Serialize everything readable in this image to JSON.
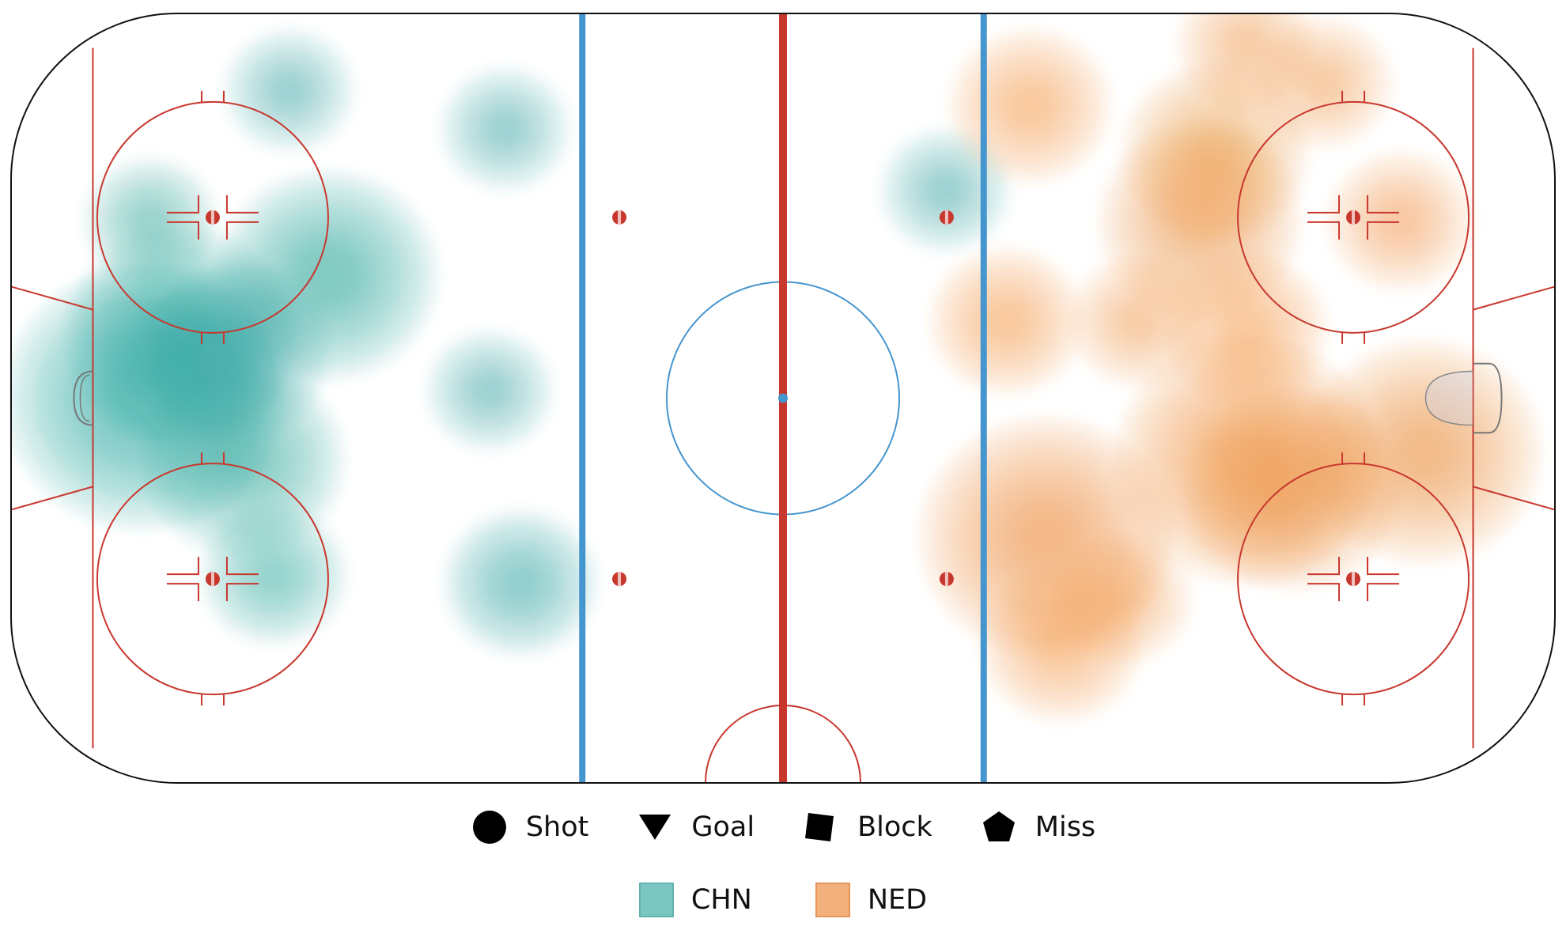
{
  "chart_data": {
    "type": "heatmap",
    "title": "",
    "description_in_picture": "",
    "legend": {
      "event_types": [
        {
          "label": "Shot",
          "shape": "circle"
        },
        {
          "label": "Goal",
          "shape": "triangle-down"
        },
        {
          "label": "Block",
          "shape": "square"
        },
        {
          "label": "Miss",
          "shape": "pentagon"
        }
      ],
      "teams": [
        {
          "label": "CHN",
          "color": "#7cc6c1",
          "border": "#5fb3ad"
        },
        {
          "label": "NED",
          "color": "#f2b07d",
          "border": "#e8955a"
        }
      ]
    },
    "series": [
      {
        "name": "CHN",
        "color": "#2fa79f",
        "hotspots": [
          {
            "x": 0.085,
            "y": 0.5,
            "weight": 1.0
          },
          {
            "x": 0.11,
            "y": 0.42,
            "weight": 0.7
          },
          {
            "x": 0.15,
            "y": 0.58,
            "weight": 0.55
          },
          {
            "x": 0.205,
            "y": 0.34,
            "weight": 0.65
          },
          {
            "x": 0.145,
            "y": 0.44,
            "weight": 0.45
          },
          {
            "x": 0.17,
            "y": 0.73,
            "weight": 0.2
          },
          {
            "x": 0.18,
            "y": 0.1,
            "weight": 0.1
          },
          {
            "x": 0.09,
            "y": 0.27,
            "weight": 0.12
          },
          {
            "x": 0.32,
            "y": 0.15,
            "weight": 0.1
          },
          {
            "x": 0.33,
            "y": 0.74,
            "weight": 0.25
          },
          {
            "x": 0.31,
            "y": 0.49,
            "weight": 0.08
          },
          {
            "x": 0.605,
            "y": 0.23,
            "weight": 0.1
          }
        ]
      },
      {
        "name": "NED",
        "color": "#ee9447",
        "hotspots": [
          {
            "x": 0.67,
            "y": 0.68,
            "weight": 0.85
          },
          {
            "x": 0.8,
            "y": 0.58,
            "weight": 0.9
          },
          {
            "x": 0.83,
            "y": 0.62,
            "weight": 0.6
          },
          {
            "x": 0.915,
            "y": 0.57,
            "weight": 0.75
          },
          {
            "x": 0.77,
            "y": 0.27,
            "weight": 0.55
          },
          {
            "x": 0.78,
            "y": 0.18,
            "weight": 0.45
          },
          {
            "x": 0.66,
            "y": 0.12,
            "weight": 0.3
          },
          {
            "x": 0.645,
            "y": 0.4,
            "weight": 0.25
          },
          {
            "x": 0.68,
            "y": 0.82,
            "weight": 0.3
          },
          {
            "x": 0.8,
            "y": 0.41,
            "weight": 0.3
          },
          {
            "x": 0.85,
            "y": 0.09,
            "weight": 0.15
          },
          {
            "x": 0.8,
            "y": 0.04,
            "weight": 0.15
          },
          {
            "x": 0.9,
            "y": 0.27,
            "weight": 0.2
          },
          {
            "x": 0.73,
            "y": 0.4,
            "weight": 0.15
          },
          {
            "x": 0.72,
            "y": 0.76,
            "weight": 0.15
          }
        ]
      }
    ],
    "events": []
  }
}
